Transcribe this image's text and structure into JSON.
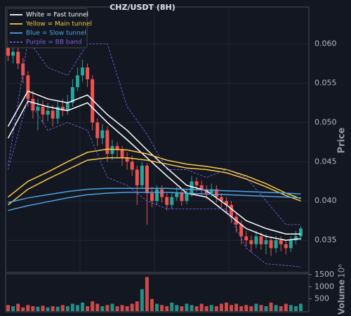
{
  "chart_data": {
    "type": "candlestick",
    "title": "CHZ/USDT (8H)",
    "y_label": "Price",
    "volume_label": "Volume",
    "volume_offset": "10⁶",
    "up_color": "#26a69a",
    "down_color": "#ef5350",
    "grid": true,
    "legend": "upper left",
    "ylim": [
      0.0309,
      0.0647
    ],
    "yticks": [
      0.035,
      {
        "value": 0.04,
        "label": "0.040"
      },
      0.045,
      {
        "value": 0.05,
        "label": "0.050"
      },
      0.055,
      {
        "value": 0.06,
        "label": "0.060"
      }
    ],
    "volume_ylim": [
      0,
      1530
    ],
    "volume_yticks": [
      500,
      1000,
      1500
    ],
    "open": [
      0.0595,
      0.0585,
      0.059,
      0.0575,
      0.056,
      0.053,
      0.0515,
      0.052,
      0.051,
      0.0515,
      0.0505,
      0.052,
      0.0515,
      0.0525,
      0.0545,
      0.056,
      0.057,
      0.0555,
      0.05,
      0.048,
      0.049,
      0.046,
      0.047,
      0.0465,
      0.0455,
      0.045,
      0.044,
      0.042,
      0.0445,
      0.041,
      0.04,
      0.0415,
      0.0405,
      0.0395,
      0.0405,
      0.041,
      0.04,
      0.041,
      0.0425,
      0.042,
      0.0415,
      0.041,
      0.0415,
      0.0405,
      0.04,
      0.0395,
      0.038,
      0.037,
      0.0355,
      0.035,
      0.0345,
      0.0355,
      0.0345,
      0.035,
      0.034,
      0.035,
      0.0345,
      0.034,
      0.035,
      0.0355
    ],
    "high": [
      0.0605,
      0.06,
      0.0598,
      0.0582,
      0.0565,
      0.054,
      0.053,
      0.0528,
      0.0525,
      0.0522,
      0.0528,
      0.053,
      0.0535,
      0.0555,
      0.057,
      0.058,
      0.0575,
      0.056,
      0.0505,
      0.0498,
      0.0495,
      0.0478,
      0.0475,
      0.047,
      0.0462,
      0.0458,
      0.0445,
      0.045,
      0.0448,
      0.0418,
      0.042,
      0.042,
      0.041,
      0.0412,
      0.0418,
      0.0415,
      0.0415,
      0.0432,
      0.043,
      0.0426,
      0.042,
      0.0422,
      0.042,
      0.041,
      0.0405,
      0.04,
      0.0385,
      0.0375,
      0.0362,
      0.0356,
      0.0362,
      0.036,
      0.0358,
      0.0355,
      0.0356,
      0.0355,
      0.035,
      0.0355,
      0.0362,
      0.0368
    ],
    "low": [
      0.0578,
      0.0575,
      0.0568,
      0.055,
      0.052,
      0.0505,
      0.049,
      0.05,
      0.0502,
      0.0495,
      0.0498,
      0.0508,
      0.051,
      0.052,
      0.054,
      0.0552,
      0.0545,
      0.049,
      0.047,
      0.0472,
      0.045,
      0.0452,
      0.0455,
      0.0445,
      0.044,
      0.0432,
      0.0395,
      0.0415,
      0.037,
      0.0392,
      0.0395,
      0.0398,
      0.0388,
      0.039,
      0.04,
      0.0394,
      0.0396,
      0.0405,
      0.0412,
      0.0408,
      0.0402,
      0.0405,
      0.0398,
      0.0392,
      0.0385,
      0.0372,
      0.036,
      0.0345,
      0.0342,
      0.0335,
      0.034,
      0.0338,
      0.0332,
      0.033,
      0.0334,
      0.0336,
      0.0332,
      0.0335,
      0.0345,
      0.035
    ],
    "close": [
      0.0585,
      0.059,
      0.0575,
      0.056,
      0.053,
      0.0515,
      0.052,
      0.051,
      0.0515,
      0.0505,
      0.052,
      0.0515,
      0.0525,
      0.0545,
      0.056,
      0.057,
      0.0555,
      0.05,
      0.048,
      0.049,
      0.046,
      0.047,
      0.0465,
      0.0455,
      0.045,
      0.044,
      0.042,
      0.0445,
      0.041,
      0.04,
      0.0415,
      0.0405,
      0.0395,
      0.0405,
      0.041,
      0.04,
      0.041,
      0.0425,
      0.042,
      0.0415,
      0.041,
      0.0415,
      0.0405,
      0.04,
      0.0395,
      0.038,
      0.037,
      0.0355,
      0.035,
      0.0345,
      0.0355,
      0.0345,
      0.035,
      0.034,
      0.035,
      0.0345,
      0.034,
      0.035,
      0.0355,
      0.0365
    ],
    "volume": [
      250,
      200,
      300,
      150,
      250,
      200,
      180,
      220,
      150,
      200,
      180,
      250,
      200,
      300,
      250,
      350,
      200,
      400,
      300,
      200,
      250,
      300,
      200,
      250,
      200,
      300,
      400,
      900,
      1400,
      500,
      300,
      250,
      200,
      350,
      250,
      200,
      300,
      250,
      200,
      300,
      200,
      250,
      200,
      300,
      350,
      250,
      300,
      200,
      250,
      200,
      300,
      250,
      200,
      350,
      250,
      200,
      300,
      250,
      200,
      300
    ],
    "line_x": [
      0,
      4,
      8,
      12,
      16,
      20,
      24,
      28,
      32,
      36,
      40,
      44,
      48,
      52,
      56,
      59
    ],
    "lines": [
      {
        "name": "White = Fast tunnel",
        "color": "#ffffff",
        "dashed": false,
        "upper": [
          0.0495,
          0.054,
          0.053,
          0.0525,
          0.0535,
          0.051,
          0.049,
          0.0465,
          0.0442,
          0.042,
          0.0413,
          0.0395,
          0.0375,
          0.0365,
          0.0358,
          0.0358
        ],
        "lower": [
          0.048,
          0.0527,
          0.052,
          0.0515,
          0.0525,
          0.05,
          0.0478,
          0.0455,
          0.0432,
          0.041,
          0.0405,
          0.0385,
          0.0365,
          0.0355,
          0.035,
          0.0352
        ]
      },
      {
        "name": "Yellow = Main tunnel",
        "color": "#f7c948",
        "dashed": false,
        "upper": [
          0.0405,
          0.0425,
          0.0437,
          0.045,
          0.0462,
          0.0466,
          0.0465,
          0.046,
          0.0452,
          0.0447,
          0.0444,
          0.044,
          0.0432,
          0.0422,
          0.041,
          0.0403
        ],
        "lower": [
          0.0395,
          0.0415,
          0.0428,
          0.044,
          0.0452,
          0.0455,
          0.0455,
          0.0452,
          0.0447,
          0.0442,
          0.044,
          0.0436,
          0.0428,
          0.0418,
          0.0407,
          0.04
        ]
      },
      {
        "name": "Blue = Slow tunnel",
        "color": "#4fa3e0",
        "dashed": false,
        "upper": [
          0.0398,
          0.0404,
          0.0408,
          0.0412,
          0.0415,
          0.0416,
          0.0416,
          0.0416,
          0.0416,
          0.0415,
          0.0414,
          0.0413,
          0.0412,
          0.0411,
          0.041,
          0.0409
        ],
        "lower": [
          0.0388,
          0.0394,
          0.0399,
          0.0404,
          0.0408,
          0.041,
          0.0411,
          0.0411,
          0.0411,
          0.041,
          0.0409,
          0.0408,
          0.0407,
          0.0406,
          0.0405,
          0.0404
        ]
      },
      {
        "name": "Purple = BB band",
        "color": "#7b5fe0",
        "dashed": true,
        "upper": [
          0.0445,
          0.0605,
          0.057,
          0.056,
          0.06,
          0.06,
          0.052,
          0.0485,
          0.044,
          0.044,
          0.043,
          0.044,
          0.043,
          0.04,
          0.037,
          0.037
        ],
        "lower": [
          0.044,
          0.053,
          0.049,
          0.05,
          0.049,
          0.043,
          0.042,
          0.04,
          0.039,
          0.039,
          0.039,
          0.039,
          0.034,
          0.032,
          0.0318,
          0.0316
        ]
      }
    ]
  }
}
